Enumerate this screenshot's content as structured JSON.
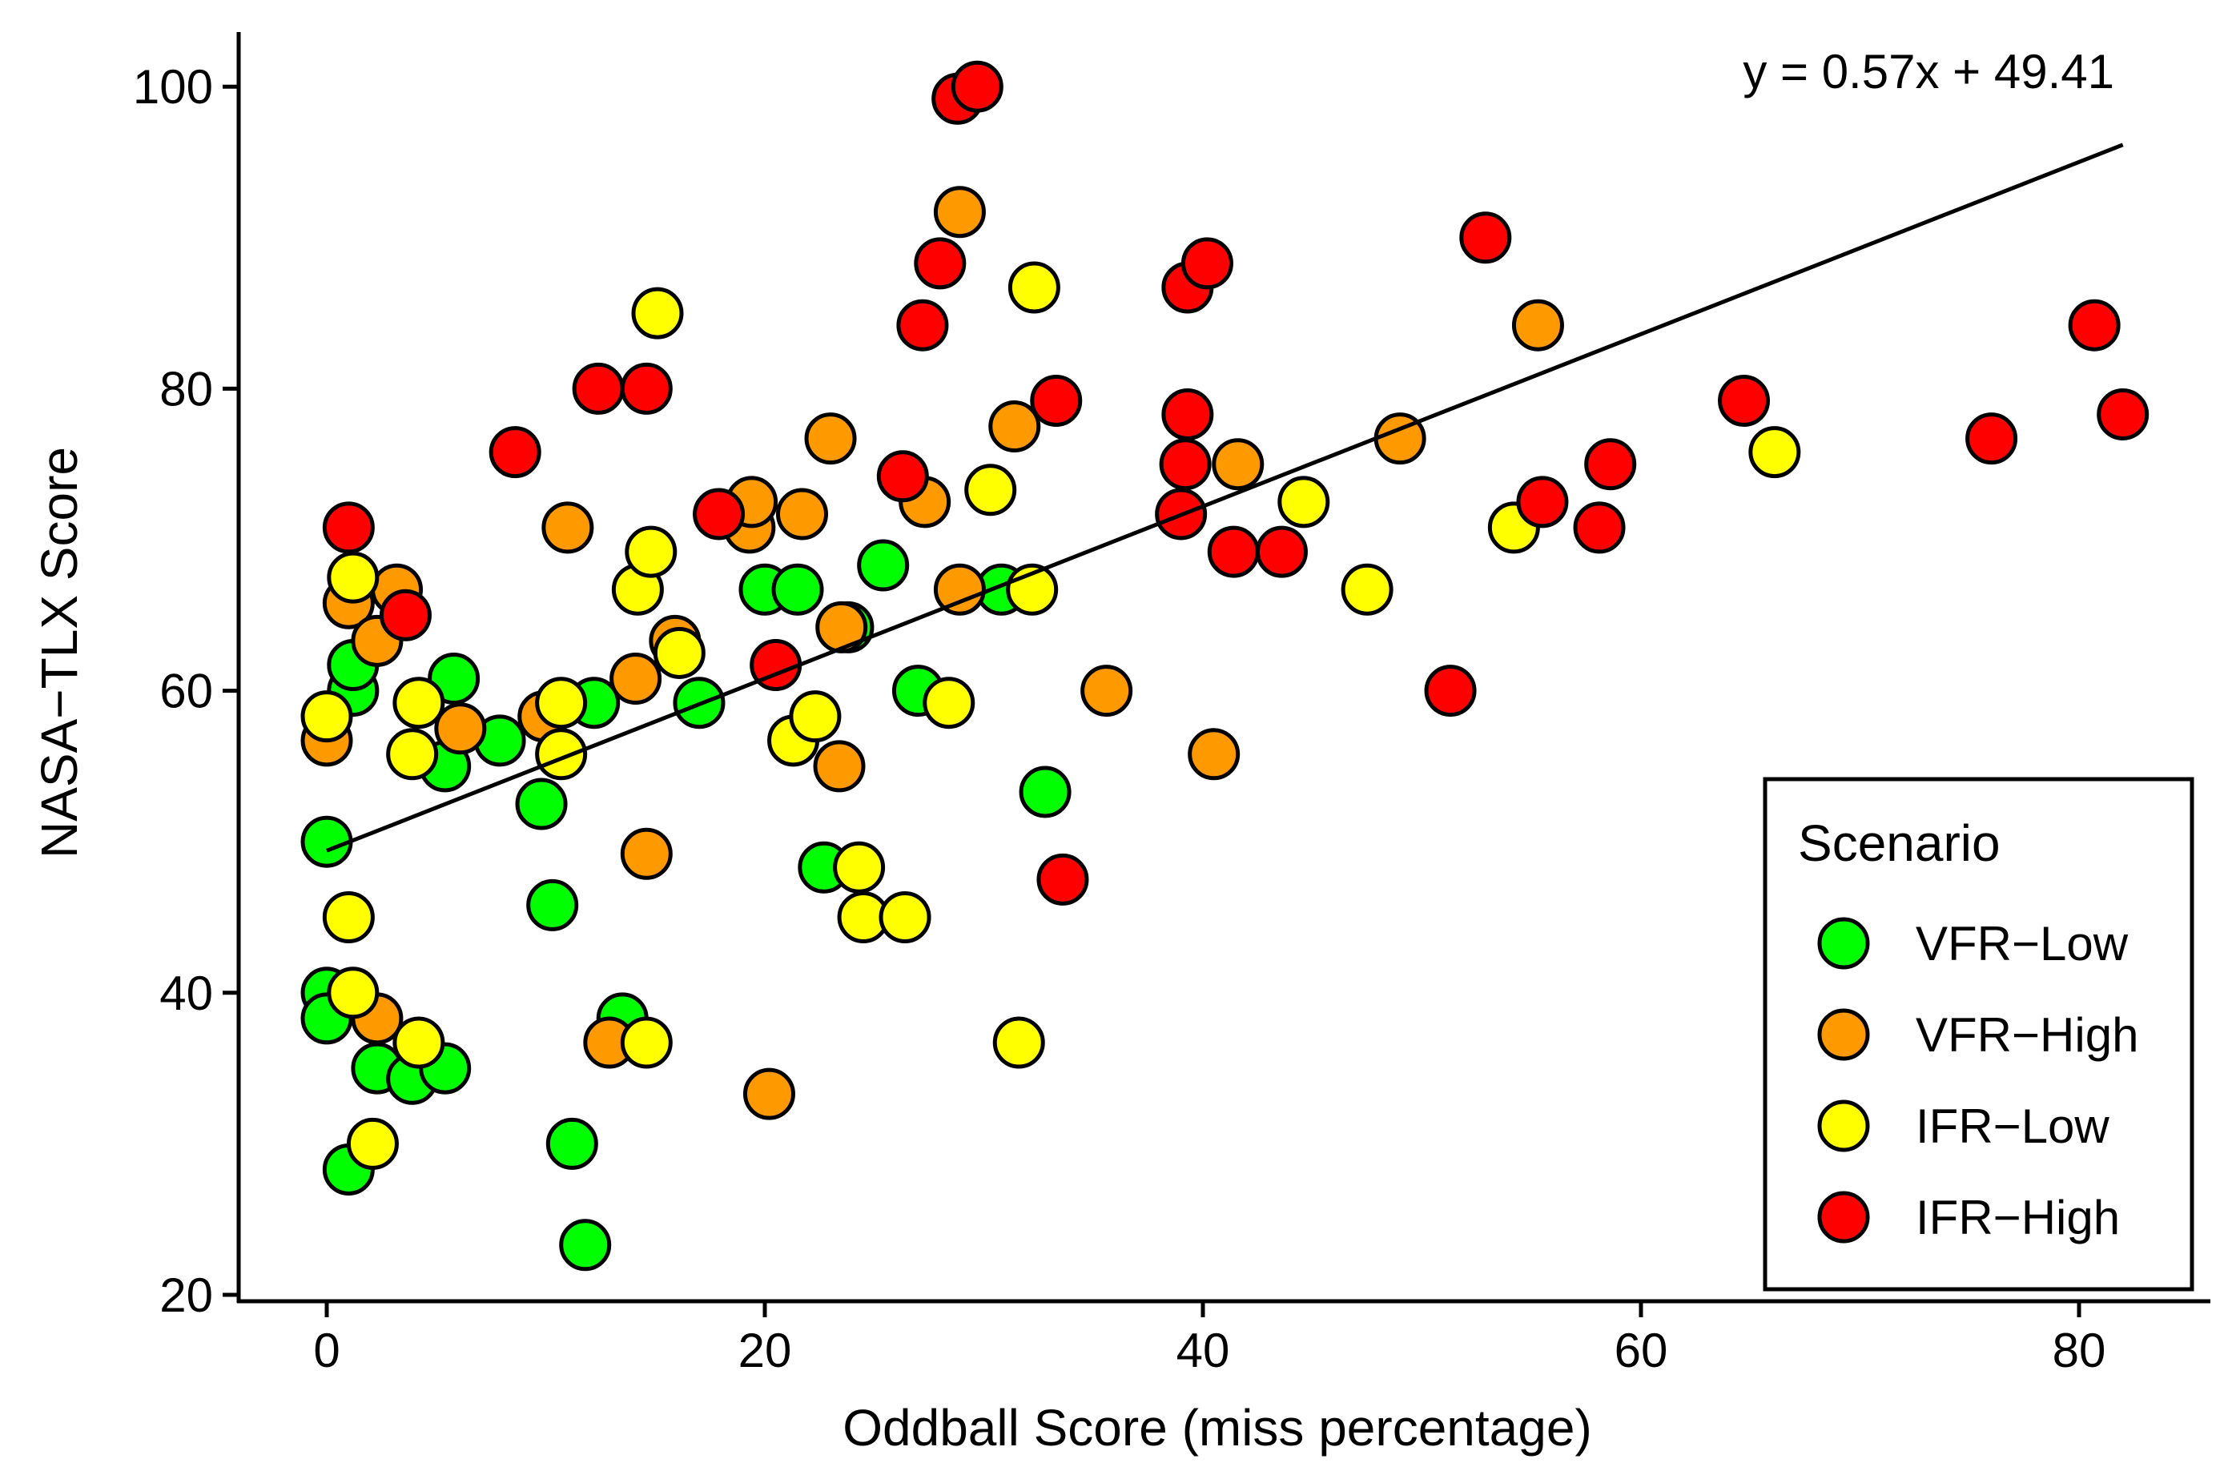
{
  "chart_data": {
    "type": "scatter",
    "title": "",
    "xlabel": "Oddball Score (miss percentage)",
    "ylabel": "NASA−TLX Score",
    "xlim": [
      -4,
      86
    ],
    "ylim": [
      20,
      104
    ],
    "xticks": [
      0,
      20,
      40,
      60,
      80
    ],
    "yticks": [
      20,
      40,
      60,
      80,
      100
    ],
    "grid": false,
    "legend": {
      "title": "Scenario",
      "position": "bottom-right"
    },
    "regression": {
      "label": "y = 0.57x + 49.41",
      "slope": 0.57,
      "intercept": 49.41,
      "x_range": [
        0,
        82
      ]
    },
    "series": [
      {
        "name": "VFR−Low",
        "color": "#00ff00",
        "points": [
          [
            0,
            50
          ],
          [
            0,
            40
          ],
          [
            0,
            38.3
          ],
          [
            1,
            28.3
          ],
          [
            1.2,
            60
          ],
          [
            1.2,
            61.7
          ],
          [
            2.3,
            35
          ],
          [
            3.9,
            34.3
          ],
          [
            5.4,
            35
          ],
          [
            5.4,
            55
          ],
          [
            5.8,
            60.8
          ],
          [
            7.9,
            56.7
          ],
          [
            9.8,
            52.5
          ],
          [
            10.3,
            45.8
          ],
          [
            11.2,
            30
          ],
          [
            11.8,
            23.3
          ],
          [
            12.2,
            59.2
          ],
          [
            13.5,
            38.3
          ],
          [
            17,
            59.2
          ],
          [
            20,
            66.7
          ],
          [
            21.5,
            66.7
          ],
          [
            22.7,
            48.3
          ],
          [
            23.8,
            64.2
          ],
          [
            25.4,
            68.3
          ],
          [
            27,
            60
          ],
          [
            30.8,
            66.7
          ],
          [
            32.8,
            53.3
          ]
        ]
      },
      {
        "name": "VFR−High",
        "color": "#ff9900",
        "points": [
          [
            0,
            56.7
          ],
          [
            1,
            65.8
          ],
          [
            2.3,
            38.3
          ],
          [
            2.3,
            63.3
          ],
          [
            3.2,
            66.7
          ],
          [
            6.1,
            57.5
          ],
          [
            9.9,
            58.3
          ],
          [
            11,
            70.8
          ],
          [
            12.9,
            36.7
          ],
          [
            14.1,
            60.8
          ],
          [
            14.6,
            49.2
          ],
          [
            15.9,
            63.3
          ],
          [
            19.3,
            70.8
          ],
          [
            19.4,
            72.5
          ],
          [
            20.2,
            33.3
          ],
          [
            21.7,
            71.7
          ],
          [
            23,
            76.7
          ],
          [
            23.4,
            55
          ],
          [
            23.5,
            64.2
          ],
          [
            27.3,
            72.5
          ],
          [
            28.9,
            66.7
          ],
          [
            28.9,
            91.7
          ],
          [
            31.4,
            77.5
          ],
          [
            35.6,
            60
          ],
          [
            40.5,
            55.8
          ],
          [
            41.6,
            75
          ],
          [
            49,
            76.7
          ],
          [
            55.3,
            84.2
          ]
        ]
      },
      {
        "name": "IFR−Low",
        "color": "#ffff00",
        "points": [
          [
            0,
            58.3
          ],
          [
            1,
            45
          ],
          [
            1.2,
            40
          ],
          [
            1.2,
            67.5
          ],
          [
            2.1,
            30
          ],
          [
            3.9,
            55.8
          ],
          [
            4.2,
            59.2
          ],
          [
            4.2,
            36.7
          ],
          [
            10.7,
            55.8
          ],
          [
            10.7,
            59.2
          ],
          [
            14.2,
            66.7
          ],
          [
            14.6,
            36.7
          ],
          [
            14.8,
            69.2
          ],
          [
            15.1,
            85
          ],
          [
            16.1,
            62.5
          ],
          [
            21.3,
            56.7
          ],
          [
            22.3,
            58.3
          ],
          [
            24.3,
            48.3
          ],
          [
            24.5,
            45
          ],
          [
            26.4,
            45
          ],
          [
            28.4,
            59.2
          ],
          [
            30.3,
            73.3
          ],
          [
            31.6,
            36.7
          ],
          [
            32.2,
            66.7
          ],
          [
            32.3,
            86.7
          ],
          [
            44.6,
            72.5
          ],
          [
            47.5,
            66.7
          ],
          [
            54.2,
            70.8
          ],
          [
            66.1,
            75.8
          ]
        ]
      },
      {
        "name": "IFR−High",
        "color": "#ff0000",
        "points": [
          [
            1,
            70.8
          ],
          [
            3.6,
            65
          ],
          [
            8.6,
            75.8
          ],
          [
            12.4,
            80
          ],
          [
            14.6,
            80
          ],
          [
            17.9,
            71.7
          ],
          [
            20.5,
            61.7
          ],
          [
            26.3,
            74.2
          ],
          [
            27.2,
            84.2
          ],
          [
            28,
            88.3
          ],
          [
            28.8,
            99.2
          ],
          [
            29.7,
            100
          ],
          [
            33.3,
            79.2
          ],
          [
            33.6,
            47.5
          ],
          [
            39,
            71.7
          ],
          [
            39.2,
            75
          ],
          [
            39.3,
            78.3
          ],
          [
            39.3,
            86.7
          ],
          [
            40.2,
            88.3
          ],
          [
            41.4,
            69.2
          ],
          [
            43.6,
            69.2
          ],
          [
            51.3,
            60
          ],
          [
            52.9,
            90
          ],
          [
            55.5,
            72.5
          ],
          [
            58.1,
            70.8
          ],
          [
            58.6,
            75
          ],
          [
            64.7,
            79.2
          ],
          [
            76,
            76.7
          ],
          [
            80.7,
            84.2
          ],
          [
            82,
            78.3
          ]
        ]
      }
    ]
  }
}
